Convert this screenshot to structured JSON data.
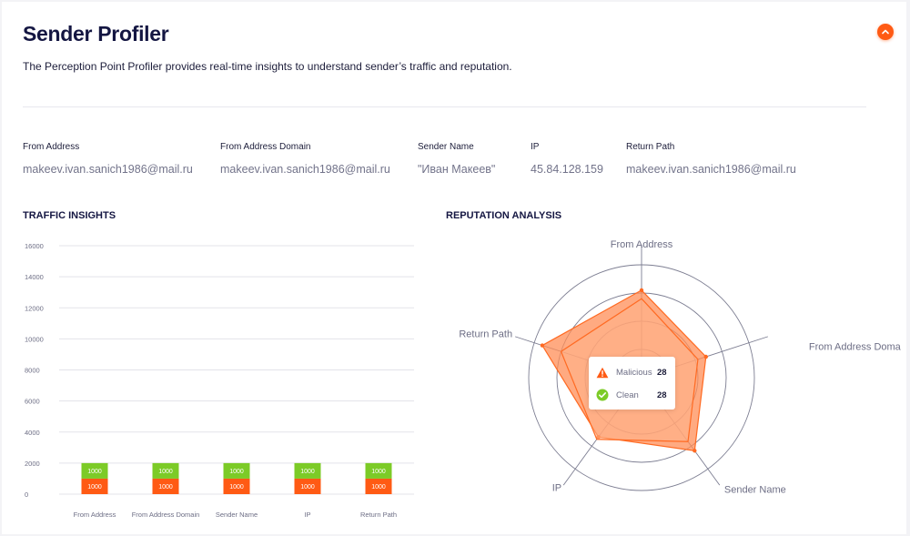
{
  "header": {
    "title": "Sender Profiler",
    "subtitle": "The Perception Point Profiler provides real-time insights to understand sender’s traffic and reputation."
  },
  "fields": [
    {
      "label": "From Address",
      "value": "makeev.ivan.sanich1986@mail.ru"
    },
    {
      "label": "From Address Domain",
      "value": "makeev.ivan.sanich1986@mail.ru"
    },
    {
      "label": "Sender Name",
      "value": "\"Иван Макеев\""
    },
    {
      "label": "IP",
      "value": "45.84.128.159"
    },
    {
      "label": "Return Path",
      "value": "makeev.ivan.sanich1986@mail.ru"
    }
  ],
  "traffic": {
    "title": "TRAFFIC INSIGHTS"
  },
  "reputation": {
    "title": "REPUTATION ANALYSIS"
  },
  "tooltip": {
    "malicious_label": "Malicious",
    "malicious_value": "28",
    "clean_label": "Clean",
    "clean_value": "28"
  },
  "colors": {
    "accent": "#ff5a14",
    "clean": "#7ccb27",
    "radar_fill": "#ff8d57",
    "radar_stroke": "#ff6a22"
  },
  "chart_data": [
    {
      "type": "bar",
      "title": "TRAFFIC INSIGHTS",
      "stacked": true,
      "categories": [
        "From Address",
        "From Address Domain",
        "Sender Name",
        "IP",
        "Return Path"
      ],
      "series": [
        {
          "name": "Malicious",
          "values": [
            1000,
            1000,
            1000,
            1000,
            1000
          ],
          "labels": [
            "1000",
            "1000",
            "1000",
            "1000",
            "1000"
          ]
        },
        {
          "name": "Clean",
          "values": [
            1000,
            1000,
            1000,
            1000,
            1000
          ],
          "labels": [
            "1000",
            "1000",
            "1000",
            "1000",
            "1000"
          ]
        }
      ],
      "ylim": [
        0,
        16000
      ],
      "yticks": [
        "0",
        "2000",
        "4000",
        "6000",
        "8000",
        "10000",
        "12000",
        "14000",
        "16000"
      ],
      "xlabel": "",
      "ylabel": "",
      "grid": true
    },
    {
      "type": "radar",
      "title": "REPUTATION ANALYSIS",
      "axes": [
        "From Address",
        "From Address Domain",
        "Sender Name",
        "IP",
        "Return Path"
      ],
      "rmax": 4,
      "series": [
        {
          "name": "Malicious",
          "values": [
            3.1,
            2.4,
            3.2,
            2.6,
            3.7
          ]
        },
        {
          "name": "Clean",
          "values": [
            2.8,
            2.1,
            2.8,
            2.7,
            3.0
          ]
        }
      ]
    }
  ]
}
